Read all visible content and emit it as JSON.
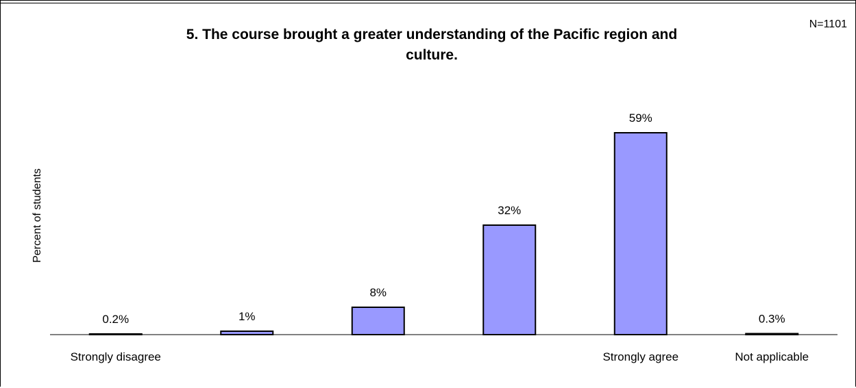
{
  "n_label": "N=1101",
  "chart_data": {
    "type": "bar",
    "title": "5. The course brought a greater understanding of the Pacific region and culture.",
    "title_lines": [
      "5. The course brought a greater understanding of the Pacific region and",
      "culture."
    ],
    "ylabel": "Percent of students",
    "xlabel": "",
    "categories": [
      "Strongly disagree",
      "",
      "",
      "",
      "Strongly agree",
      "Not applicable"
    ],
    "values": [
      0.2,
      1,
      8,
      32,
      59,
      0.3
    ],
    "data_labels": [
      "0.2%",
      "1%",
      "8%",
      "32%",
      "59%",
      "0.3%"
    ],
    "ylim": [
      0,
      100
    ],
    "grid": false,
    "bar_color": "#9999ff"
  }
}
